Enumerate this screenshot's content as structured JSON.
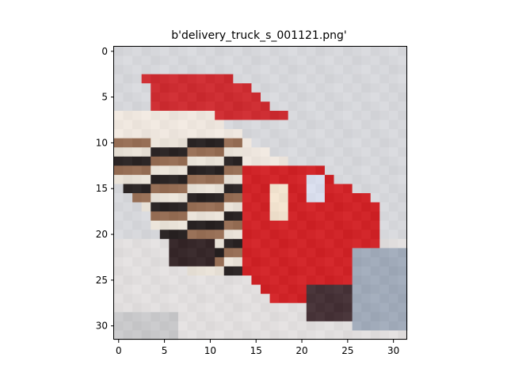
{
  "title": "b'delivery_truck_s_001121.png'",
  "image": {
    "grid_size": 32,
    "background_color": "#d6d7da",
    "description_colors": {
      "truck_red": "#d0262a",
      "dark_stripe": "#2a2424",
      "cream_stripe": "#f0ebe6",
      "shadow_grey": "#9ca3ad"
    }
  },
  "axes": {
    "x_ticks": [
      "0",
      "5",
      "10",
      "15",
      "20",
      "25",
      "30"
    ],
    "y_ticks": [
      "0",
      "5",
      "10",
      "15",
      "20",
      "25",
      "30"
    ]
  }
}
